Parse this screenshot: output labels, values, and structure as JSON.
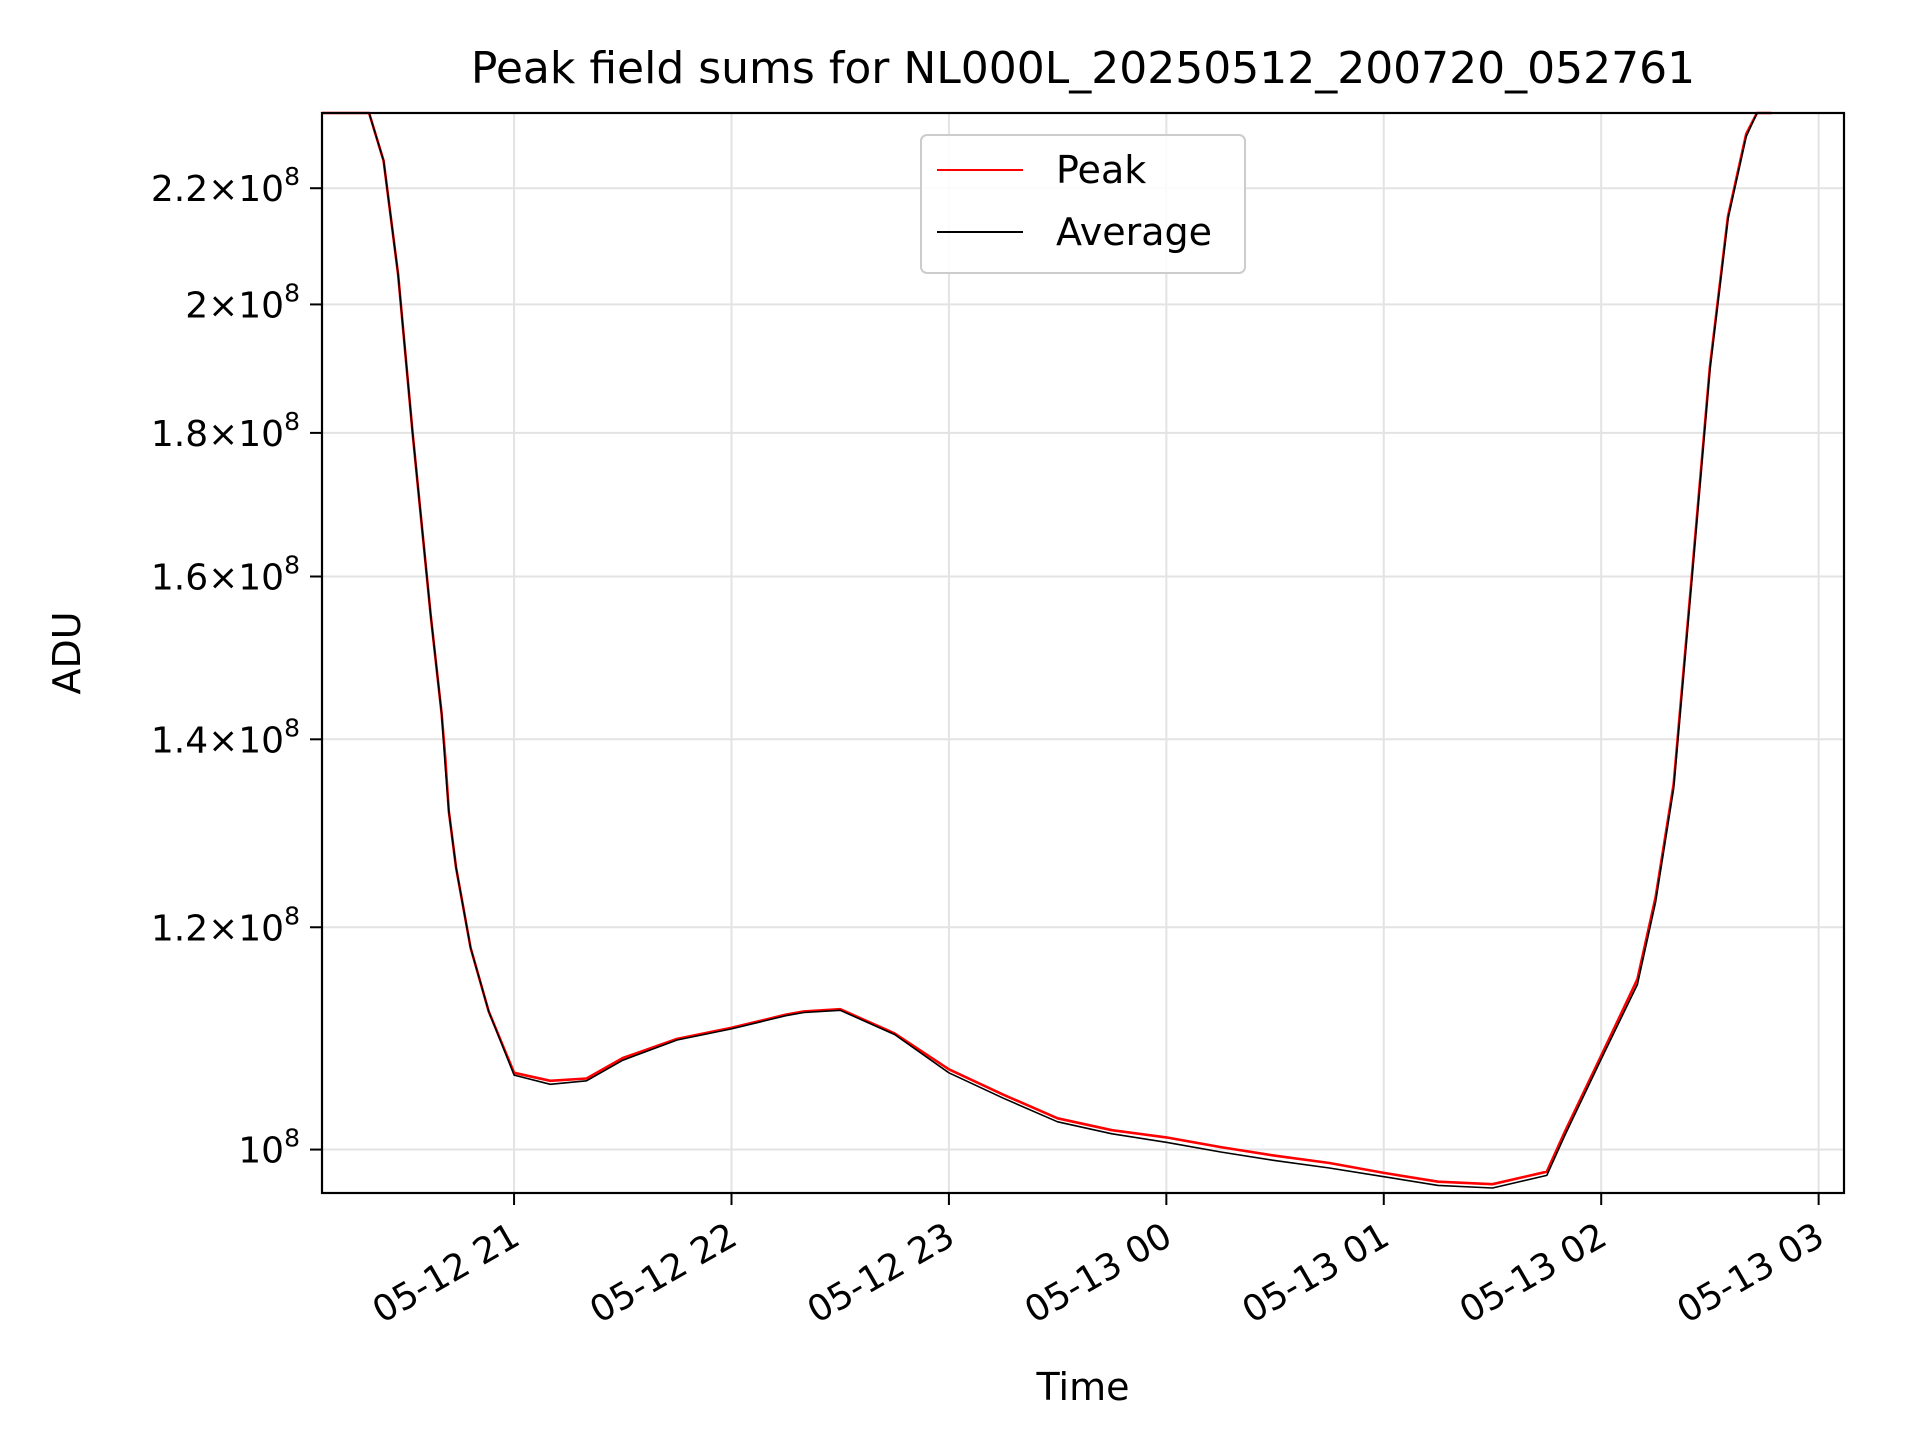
{
  "chart_data": {
    "type": "line",
    "title": "Peak field sums for NL000L_20250512_200720_052761",
    "xlabel": "Time",
    "ylabel": "ADU",
    "x_ticks": [
      "05-12 21",
      "05-12 22",
      "05-12 23",
      "05-13 00",
      "05-13 01",
      "05-13 02",
      "05-13 03"
    ],
    "y_ticks": [
      {
        "value": 100000000,
        "mantissa": "",
        "exp": "8"
      },
      {
        "value": 120000000,
        "mantissa": "1.2",
        "exp": "8"
      },
      {
        "value": 140000000,
        "mantissa": "1.4",
        "exp": "8"
      },
      {
        "value": 160000000,
        "mantissa": "1.6",
        "exp": "8"
      },
      {
        "value": 180000000,
        "mantissa": "1.8",
        "exp": "8"
      },
      {
        "value": 200000000,
        "mantissa": "2",
        "exp": "8"
      },
      {
        "value": 220000000,
        "mantissa": "2.2",
        "exp": "8"
      }
    ],
    "y_scale": "log",
    "xlim": [
      "2025-05-12 20:07",
      "2025-05-13 03:07"
    ],
    "ylim": [
      96500000,
      234000000
    ],
    "grid": true,
    "legend_position": "top-center",
    "series": [
      {
        "name": "Peak",
        "color": "#ff0000",
        "x": [
          "2025-05-12 20:07",
          "2025-05-12 20:13",
          "2025-05-12 20:20",
          "2025-05-12 20:24",
          "2025-05-12 20:28",
          "2025-05-12 20:32",
          "2025-05-12 20:37",
          "2025-05-12 20:40",
          "2025-05-12 20:41",
          "2025-05-12 20:42",
          "2025-05-12 20:44",
          "2025-05-12 20:48",
          "2025-05-12 20:53",
          "2025-05-12 21:00",
          "2025-05-12 21:10",
          "2025-05-12 21:20",
          "2025-05-12 21:30",
          "2025-05-12 21:45",
          "2025-05-12 22:00",
          "2025-05-12 22:15",
          "2025-05-12 22:20",
          "2025-05-12 22:30",
          "2025-05-12 22:45",
          "2025-05-12 23:00",
          "2025-05-12 23:15",
          "2025-05-12 23:30",
          "2025-05-12 23:45",
          "2025-05-13 00:00",
          "2025-05-13 00:15",
          "2025-05-13 00:30",
          "2025-05-13 00:45",
          "2025-05-13 01:00",
          "2025-05-13 01:15",
          "2025-05-13 01:30",
          "2025-05-13 01:45",
          "2025-05-13 01:50",
          "2025-05-13 02:00",
          "2025-05-13 02:10",
          "2025-05-13 02:15",
          "2025-05-13 02:20",
          "2025-05-13 02:25",
          "2025-05-13 02:30",
          "2025-05-13 02:35",
          "2025-05-13 02:40",
          "2025-05-13 02:43",
          "2025-05-13 02:47"
        ],
        "y": [
          234000000,
          234000000,
          234000000,
          225000000,
          205000000,
          180000000,
          155000000,
          143000000,
          138000000,
          132000000,
          126000000,
          118000000,
          112000000,
          106500000,
          105800000,
          106000000,
          107800000,
          109500000,
          110500000,
          111700000,
          112000000,
          112200000,
          110000000,
          106800000,
          104600000,
          102600000,
          101600000,
          101000000,
          100200000,
          99500000,
          98900000,
          98100000,
          97400000,
          97200000,
          98200000,
          101500000,
          108000000,
          115000000,
          123000000,
          135000000,
          160000000,
          190000000,
          215000000,
          230000000,
          234000000,
          234000000
        ]
      },
      {
        "name": "Average",
        "color": "#000000",
        "x": [
          "2025-05-12 20:07",
          "2025-05-12 20:13",
          "2025-05-12 20:20",
          "2025-05-12 20:24",
          "2025-05-12 20:28",
          "2025-05-12 20:32",
          "2025-05-12 20:37",
          "2025-05-12 20:40",
          "2025-05-12 20:41",
          "2025-05-12 20:42",
          "2025-05-12 20:44",
          "2025-05-12 20:48",
          "2025-05-12 20:53",
          "2025-05-12 21:00",
          "2025-05-12 21:10",
          "2025-05-12 21:20",
          "2025-05-12 21:30",
          "2025-05-12 21:45",
          "2025-05-12 22:00",
          "2025-05-12 22:15",
          "2025-05-12 22:20",
          "2025-05-12 22:30",
          "2025-05-12 22:45",
          "2025-05-12 23:00",
          "2025-05-12 23:15",
          "2025-05-12 23:30",
          "2025-05-12 23:45",
          "2025-05-13 00:00",
          "2025-05-13 00:15",
          "2025-05-13 00:30",
          "2025-05-13 00:45",
          "2025-05-13 01:00",
          "2025-05-13 01:15",
          "2025-05-13 01:30",
          "2025-05-13 01:45",
          "2025-05-13 01:50",
          "2025-05-13 02:00",
          "2025-05-13 02:10",
          "2025-05-13 02:15",
          "2025-05-13 02:20",
          "2025-05-13 02:25",
          "2025-05-13 02:30",
          "2025-05-13 02:35",
          "2025-05-13 02:40",
          "2025-05-13 02:43",
          "2025-05-13 02:47"
        ],
        "y": [
          234000000,
          234000000,
          234000000,
          225000000,
          205000000,
          180000000,
          155000000,
          143000000,
          137000000,
          132000000,
          126000000,
          118000000,
          112000000,
          106300000,
          105500000,
          105800000,
          107600000,
          109400000,
          110400000,
          111600000,
          111900000,
          112100000,
          109900000,
          106500000,
          104300000,
          102300000,
          101300000,
          100600000,
          99800000,
          99100000,
          98500000,
          97800000,
          97100000,
          96900000,
          97900000,
          101200000,
          107700000,
          114500000,
          122500000,
          134500000,
          159500000,
          189500000,
          214500000,
          229500000,
          234000000,
          234000000
        ]
      }
    ]
  }
}
